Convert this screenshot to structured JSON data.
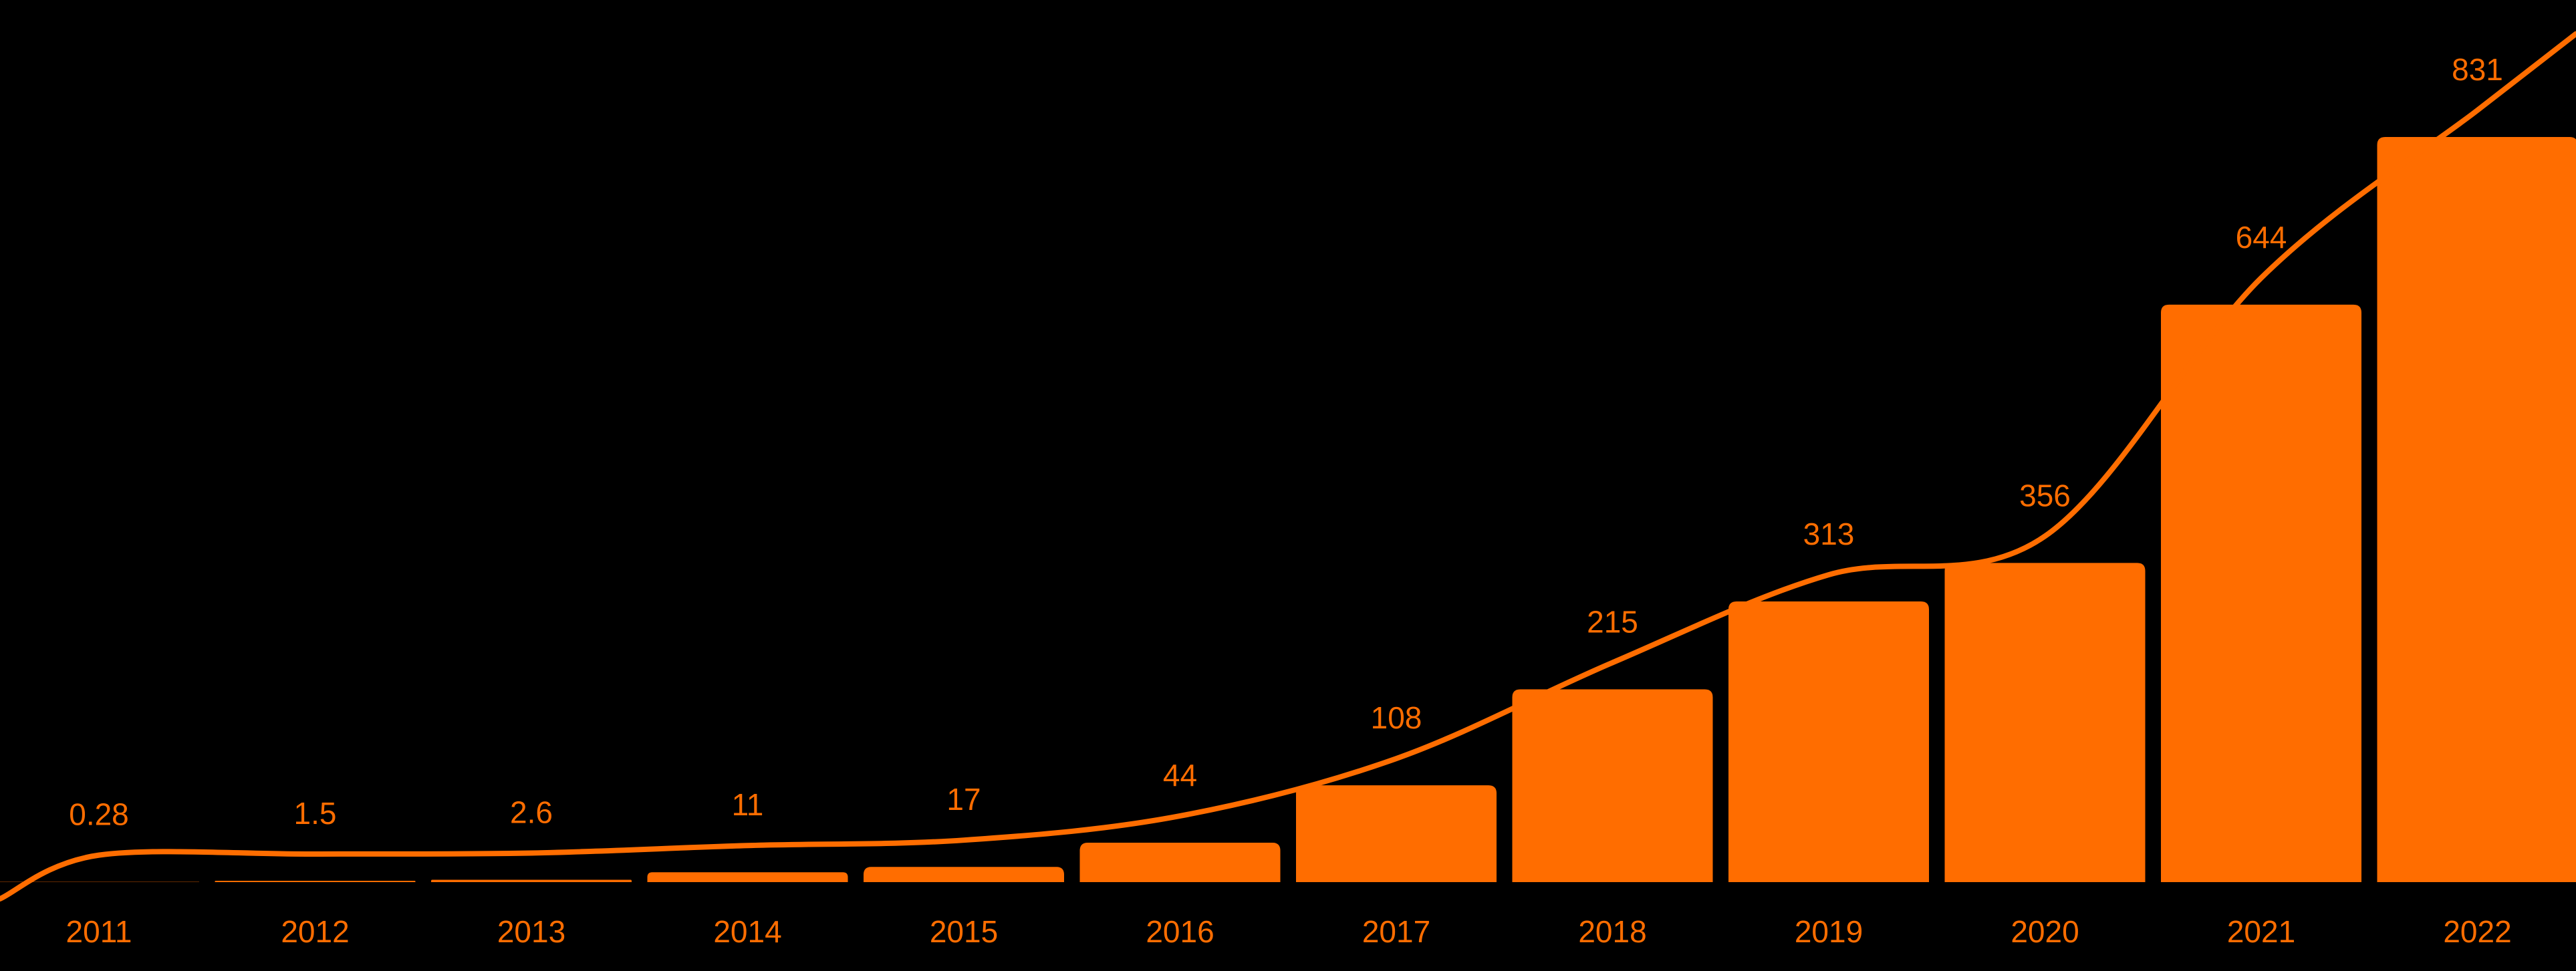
{
  "colors": {
    "background": "#000000",
    "bar": "#ff6d00",
    "line": "#ff6d00",
    "text": "#ff6d00"
  },
  "chart_data": {
    "type": "bar",
    "categories": [
      "2011",
      "2012",
      "2013",
      "2014",
      "2015",
      "2016",
      "2017",
      "2018",
      "2019",
      "2020",
      "2021",
      "2022"
    ],
    "values": [
      0.28,
      1.5,
      2.6,
      11,
      17,
      44,
      108,
      215,
      313,
      356,
      644,
      831
    ],
    "data_labels": [
      "0.28",
      "1.5",
      "2.6",
      "11",
      "17",
      "44",
      "108",
      "215",
      "313",
      "356",
      "644",
      "831"
    ],
    "trend_line": true,
    "title": "",
    "xlabel": "",
    "ylabel": "",
    "ylim": [
      0,
      831
    ],
    "grid": false,
    "legend": "none"
  }
}
